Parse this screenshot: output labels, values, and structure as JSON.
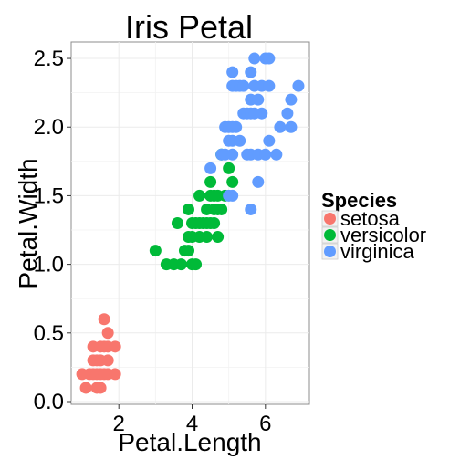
{
  "chart_data": {
    "type": "scatter",
    "title": "Iris Petal",
    "xlabel": "Petal.Length",
    "ylabel": "Petal.Width",
    "xlim": [
      0.7,
      7.2
    ],
    "ylim": [
      -0.02,
      2.62
    ],
    "xticks": [
      2,
      4,
      6
    ],
    "xtick_labels": [
      "2",
      "4",
      "6"
    ],
    "yticks": [
      0,
      0.5,
      1,
      1.5,
      2,
      2.5
    ],
    "ytick_labels": [
      "0.0",
      "0.5",
      "1.0",
      "1.5",
      "2.0",
      "2.5"
    ],
    "grid": true,
    "legend": {
      "title": "Species",
      "position": "right"
    },
    "series": [
      {
        "name": "setosa",
        "color": "#F8766D",
        "points": [
          [
            1.0,
            0.2
          ],
          [
            1.1,
            0.1
          ],
          [
            1.2,
            0.2
          ],
          [
            1.3,
            0.2
          ],
          [
            1.3,
            0.3
          ],
          [
            1.3,
            0.4
          ],
          [
            1.4,
            0.1
          ],
          [
            1.4,
            0.2
          ],
          [
            1.4,
            0.3
          ],
          [
            1.5,
            0.1
          ],
          [
            1.5,
            0.2
          ],
          [
            1.5,
            0.3
          ],
          [
            1.5,
            0.4
          ],
          [
            1.6,
            0.2
          ],
          [
            1.6,
            0.4
          ],
          [
            1.6,
            0.6
          ],
          [
            1.7,
            0.2
          ],
          [
            1.7,
            0.3
          ],
          [
            1.7,
            0.4
          ],
          [
            1.7,
            0.5
          ],
          [
            1.9,
            0.2
          ],
          [
            1.9,
            0.4
          ]
        ]
      },
      {
        "name": "versicolor",
        "color": "#00BA38",
        "points": [
          [
            3.0,
            1.1
          ],
          [
            3.3,
            1.0
          ],
          [
            3.5,
            1.0
          ],
          [
            3.6,
            1.3
          ],
          [
            3.7,
            1.0
          ],
          [
            3.8,
            1.1
          ],
          [
            3.9,
            1.1
          ],
          [
            3.9,
            1.2
          ],
          [
            3.9,
            1.4
          ],
          [
            4.0,
            1.0
          ],
          [
            4.0,
            1.2
          ],
          [
            4.0,
            1.3
          ],
          [
            4.1,
            1.0
          ],
          [
            4.1,
            1.3
          ],
          [
            4.2,
            1.2
          ],
          [
            4.2,
            1.3
          ],
          [
            4.2,
            1.5
          ],
          [
            4.3,
            1.3
          ],
          [
            4.4,
            1.2
          ],
          [
            4.4,
            1.3
          ],
          [
            4.4,
            1.4
          ],
          [
            4.5,
            1.3
          ],
          [
            4.5,
            1.5
          ],
          [
            4.5,
            1.6
          ],
          [
            4.6,
            1.3
          ],
          [
            4.6,
            1.4
          ],
          [
            4.6,
            1.5
          ],
          [
            4.7,
            1.2
          ],
          [
            4.7,
            1.4
          ],
          [
            4.7,
            1.5
          ],
          [
            4.8,
            1.4
          ],
          [
            4.8,
            1.8
          ],
          [
            4.9,
            1.5
          ],
          [
            5.0,
            1.7
          ],
          [
            5.1,
            1.6
          ]
        ]
      },
      {
        "name": "virginica",
        "color": "#619CFF",
        "points": [
          [
            4.5,
            1.7
          ],
          [
            4.8,
            1.8
          ],
          [
            4.9,
            1.8
          ],
          [
            4.9,
            2.0
          ],
          [
            5.0,
            1.5
          ],
          [
            5.0,
            1.9
          ],
          [
            5.0,
            2.0
          ],
          [
            5.1,
            1.5
          ],
          [
            5.1,
            1.8
          ],
          [
            5.1,
            1.9
          ],
          [
            5.1,
            2.0
          ],
          [
            5.1,
            2.3
          ],
          [
            5.1,
            2.4
          ],
          [
            5.2,
            2.0
          ],
          [
            5.2,
            2.3
          ],
          [
            5.3,
            1.9
          ],
          [
            5.3,
            2.3
          ],
          [
            5.4,
            2.1
          ],
          [
            5.4,
            2.3
          ],
          [
            5.5,
            1.8
          ],
          [
            5.5,
            2.1
          ],
          [
            5.6,
            1.4
          ],
          [
            5.6,
            1.8
          ],
          [
            5.6,
            2.1
          ],
          [
            5.6,
            2.2
          ],
          [
            5.6,
            2.4
          ],
          [
            5.7,
            2.1
          ],
          [
            5.7,
            2.3
          ],
          [
            5.7,
            2.5
          ],
          [
            5.8,
            1.6
          ],
          [
            5.8,
            1.8
          ],
          [
            5.8,
            2.2
          ],
          [
            5.9,
            2.1
          ],
          [
            5.9,
            2.3
          ],
          [
            6.0,
            1.8
          ],
          [
            6.0,
            2.5
          ],
          [
            6.1,
            1.9
          ],
          [
            6.1,
            2.3
          ],
          [
            6.1,
            2.5
          ],
          [
            6.3,
            1.8
          ],
          [
            6.4,
            2.0
          ],
          [
            6.6,
            2.1
          ],
          [
            6.7,
            2.0
          ],
          [
            6.7,
            2.2
          ],
          [
            6.9,
            2.3
          ]
        ]
      }
    ]
  }
}
